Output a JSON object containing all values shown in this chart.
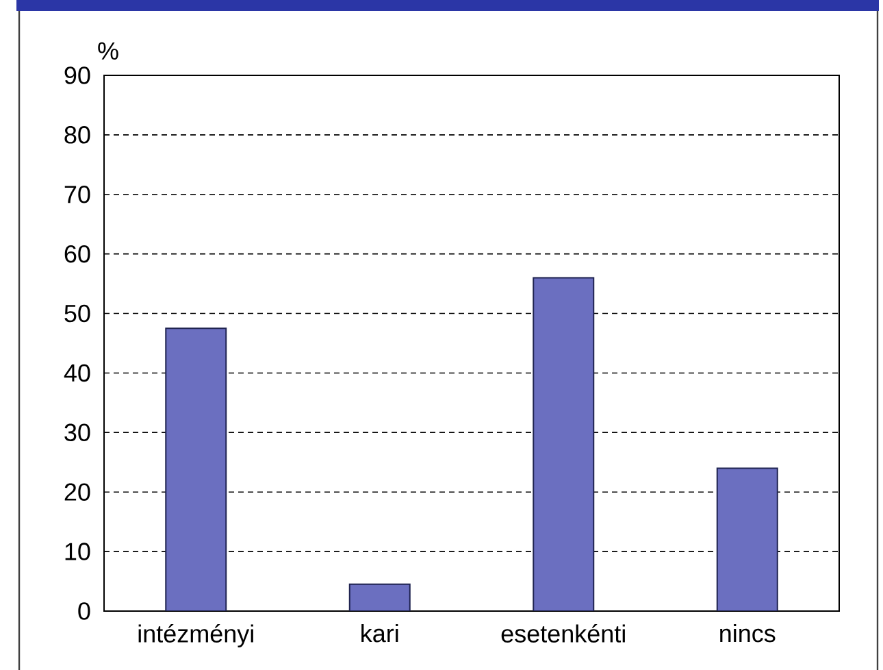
{
  "chart_data": {
    "type": "bar",
    "ylabel": "%",
    "categories": [
      "intézményi",
      "kari",
      "esetenkénti",
      "nincs"
    ],
    "values": [
      47.5,
      4.5,
      56,
      24
    ],
    "color": "#6b6fc0",
    "ylim": [
      0,
      90
    ],
    "yticks": [
      0,
      10,
      20,
      30,
      40,
      50,
      60,
      70,
      80,
      90
    ],
    "grid": "y"
  }
}
